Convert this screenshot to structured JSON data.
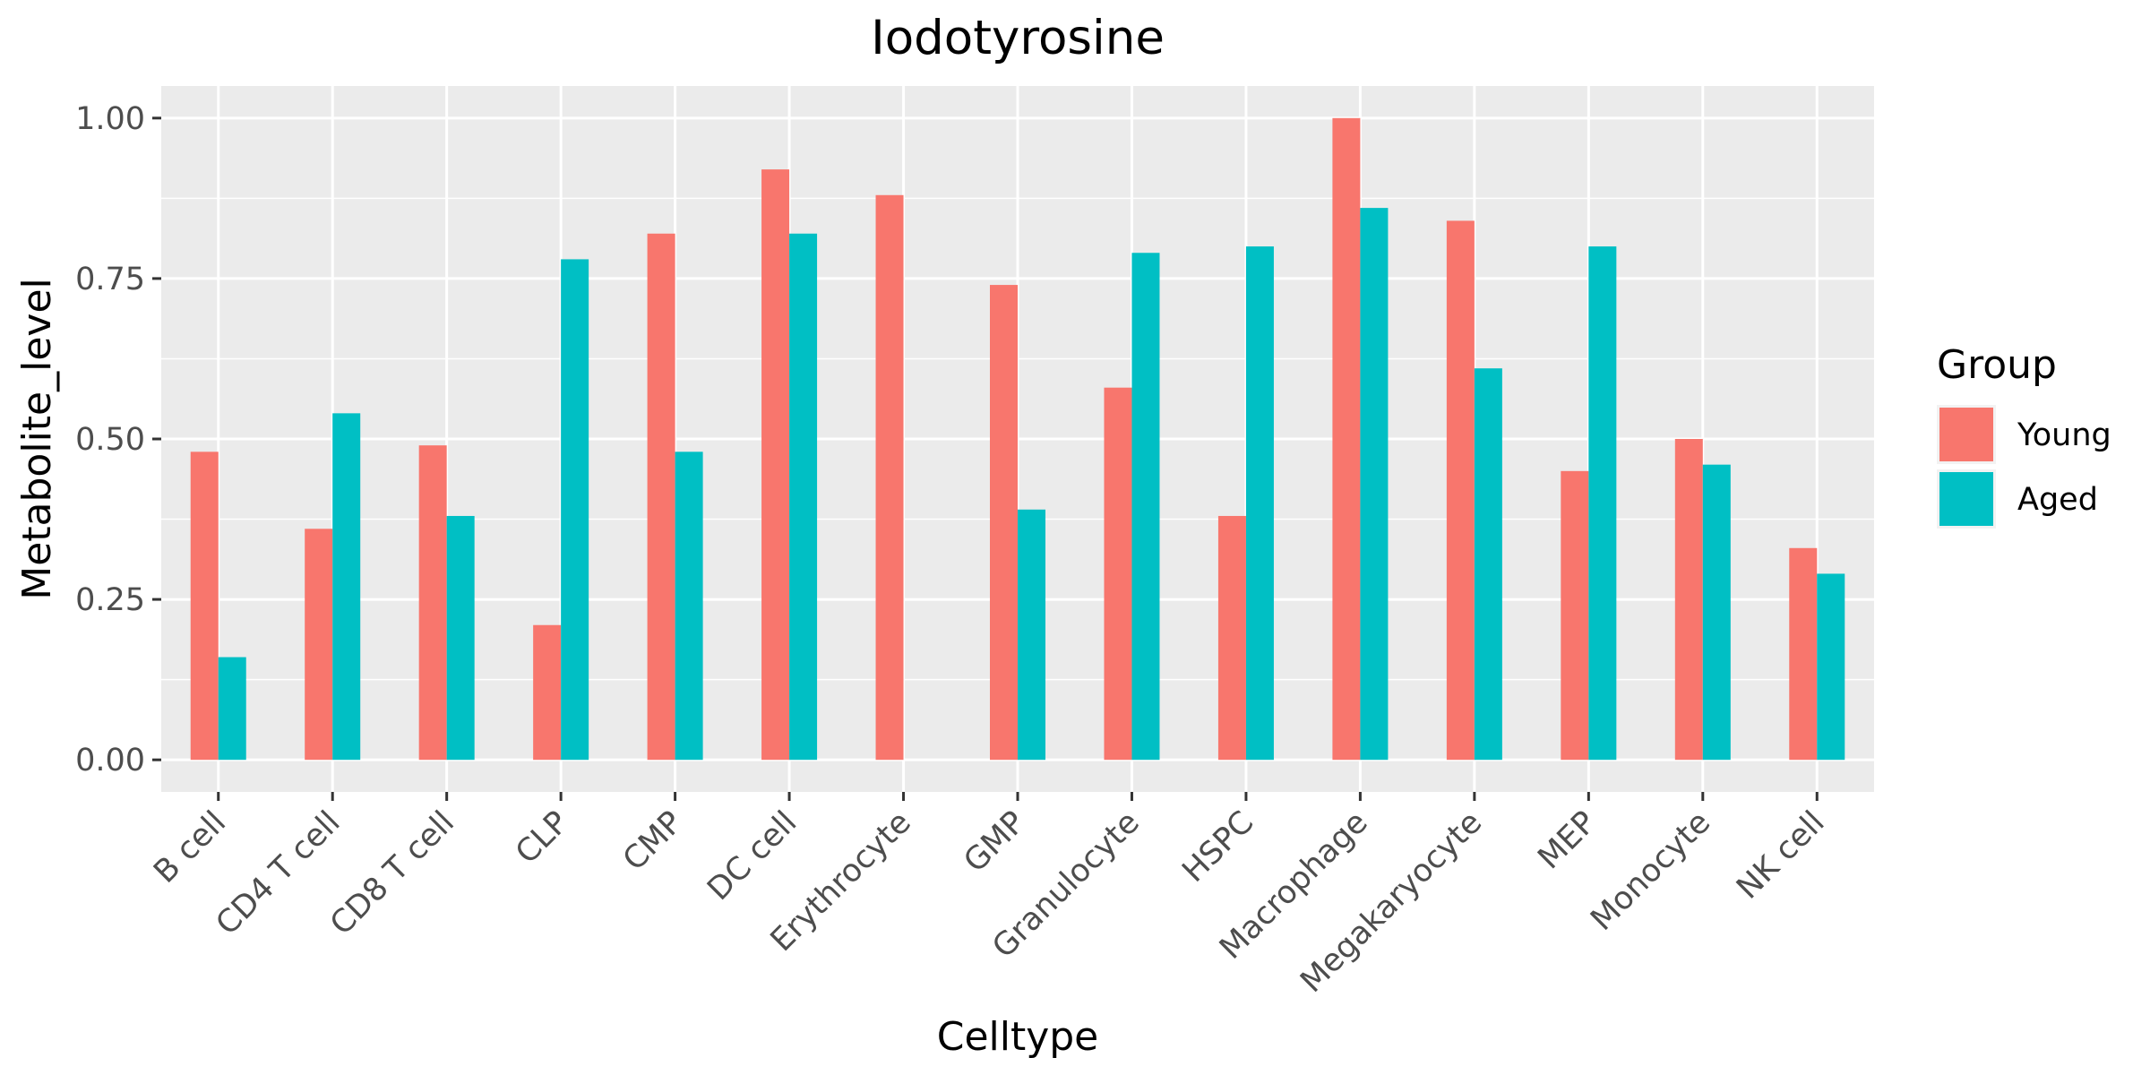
{
  "chart_data": {
    "type": "bar",
    "title": "Iodotyrosine",
    "xlabel": "Celltype",
    "ylabel": "Metabolite_level",
    "ylim": [
      -0.05,
      1.05
    ],
    "yticks": [
      0.0,
      0.25,
      0.5,
      0.75,
      1.0
    ],
    "ytick_labels": [
      "0.00",
      "0.25",
      "0.50",
      "0.75",
      "1.00"
    ],
    "grid": true,
    "legend": {
      "title": "Group",
      "position": "right"
    },
    "categories": [
      "B cell",
      "CD4 T cell",
      "CD8 T cell",
      "CLP",
      "CMP",
      "DC cell",
      "Erythrocyte",
      "GMP",
      "Granulocyte",
      "HSPC",
      "Macrophage",
      "Megakaryocyte",
      "MEP",
      "Monocyte",
      "NK cell"
    ],
    "series": [
      {
        "name": "Young",
        "color": "#F8766D",
        "values": [
          0.48,
          0.36,
          0.49,
          0.21,
          0.82,
          0.92,
          0.88,
          0.74,
          0.58,
          0.38,
          1.0,
          0.84,
          0.45,
          0.5,
          0.33
        ]
      },
      {
        "name": "Aged",
        "color": "#00BFC4",
        "values": [
          0.16,
          0.54,
          0.38,
          0.78,
          0.48,
          0.82,
          0.0,
          0.39,
          0.79,
          0.8,
          0.86,
          0.61,
          0.8,
          0.46,
          0.29
        ]
      }
    ]
  }
}
